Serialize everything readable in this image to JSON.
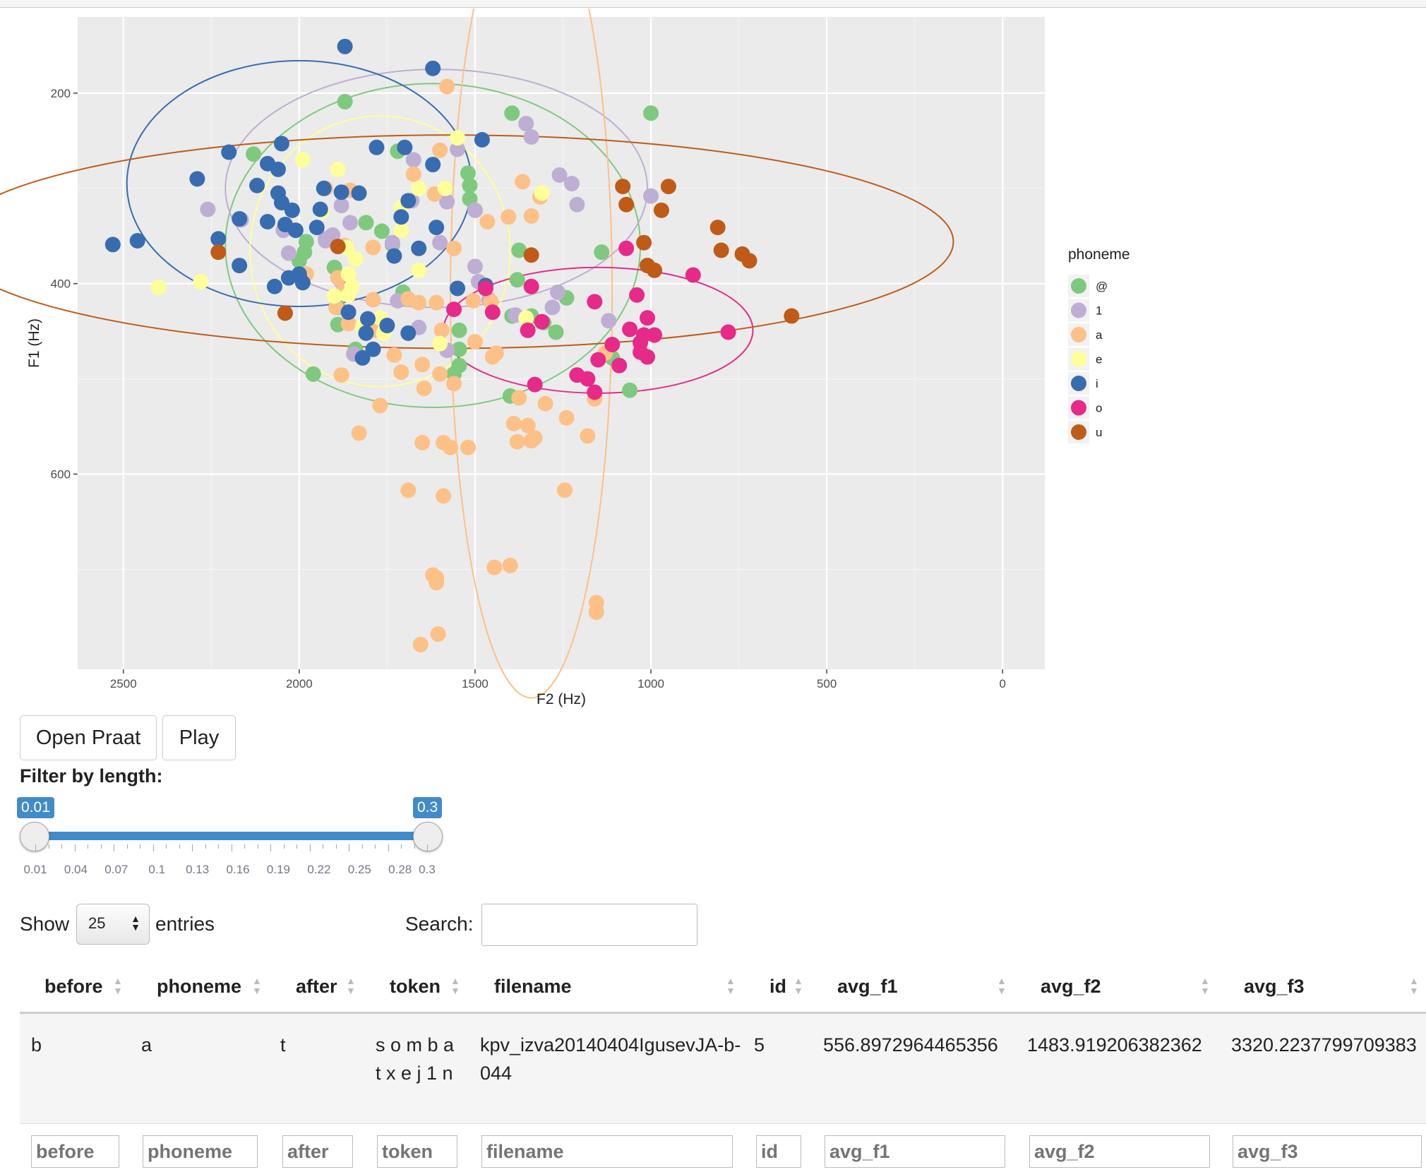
{
  "chart_data": {
    "type": "scatter",
    "xlabel": "F2 (Hz)",
    "ylabel": "F1 (Hz)",
    "xlim": [
      2630,
      -120
    ],
    "ylim": [
      805,
      120
    ],
    "x_reversed": true,
    "y_reversed": true,
    "xticks": [
      2500,
      2000,
      1500,
      1000,
      500,
      0
    ],
    "yticks": [
      200,
      400,
      600
    ],
    "grid": true,
    "legend_title": "phoneme",
    "legend_position": "right",
    "series": [
      {
        "name": "@",
        "color": "#7fc97f",
        "points": [
          [
            1870,
            209
          ],
          [
            1395,
            221
          ],
          [
            1000,
            221
          ],
          [
            2130,
            264
          ],
          [
            1720,
            261
          ],
          [
            1520,
            284
          ],
          [
            1515,
            297
          ],
          [
            1515,
            311
          ],
          [
            1810,
            336
          ],
          [
            1765,
            345
          ],
          [
            1735,
            359
          ],
          [
            1985,
            367
          ],
          [
            2000,
            376
          ],
          [
            1900,
            383
          ],
          [
            1375,
            365
          ],
          [
            1140,
            367
          ],
          [
            1705,
            409
          ],
          [
            1380,
            396
          ],
          [
            1890,
            425
          ],
          [
            1890,
            443
          ],
          [
            1395,
            434
          ],
          [
            1545,
            449
          ],
          [
            1340,
            434
          ],
          [
            1240,
            415
          ],
          [
            1270,
            451
          ],
          [
            1545,
            469
          ],
          [
            1840,
            469
          ],
          [
            1545,
            486
          ],
          [
            1110,
            478
          ],
          [
            1960,
            495
          ],
          [
            1560,
            495
          ],
          [
            1400,
            518
          ],
          [
            1060,
            512
          ],
          [
            1305,
            441
          ],
          [
            1980,
            356
          ]
        ]
      },
      {
        "name": "1",
        "color": "#beaed4",
        "points": [
          [
            1355,
            232
          ],
          [
            1340,
            246
          ],
          [
            1550,
            259
          ],
          [
            1675,
            270
          ],
          [
            1260,
            286
          ],
          [
            1225,
            295
          ],
          [
            2260,
            322
          ],
          [
            2165,
            333
          ],
          [
            2045,
            344
          ],
          [
            1905,
            349
          ],
          [
            1925,
            355
          ],
          [
            1880,
            318
          ],
          [
            1500,
            323
          ],
          [
            1680,
            313
          ],
          [
            1580,
            314
          ],
          [
            1210,
            317
          ],
          [
            1000,
            308
          ],
          [
            1855,
            336
          ],
          [
            1735,
            357
          ],
          [
            1925,
            353
          ],
          [
            1600,
            357
          ],
          [
            1500,
            382
          ],
          [
            1490,
            398
          ],
          [
            1460,
            417
          ],
          [
            1265,
            409
          ],
          [
            1280,
            425
          ],
          [
            1385,
            433
          ],
          [
            1580,
            470
          ],
          [
            1845,
            474
          ],
          [
            2030,
            368
          ],
          [
            1880,
            398
          ],
          [
            1120,
            439
          ],
          [
            1660,
            446
          ],
          [
            1720,
            418
          ]
        ]
      },
      {
        "name": "a",
        "color": "#fdc086",
        "points": [
          [
            1580,
            193
          ],
          [
            1600,
            260
          ],
          [
            1675,
            285
          ],
          [
            1925,
            300
          ],
          [
            1855,
            302
          ],
          [
            1615,
            306
          ],
          [
            1365,
            293
          ],
          [
            1315,
            309
          ],
          [
            1340,
            329
          ],
          [
            1405,
            330
          ],
          [
            1465,
            335
          ],
          [
            1870,
            360
          ],
          [
            1790,
            362
          ],
          [
            1560,
            363
          ],
          [
            1890,
            394
          ],
          [
            1875,
            408
          ],
          [
            1895,
            425
          ],
          [
            1980,
            390
          ],
          [
            1790,
            417
          ],
          [
            1690,
            416
          ],
          [
            1660,
            420
          ],
          [
            1610,
            420
          ],
          [
            1505,
            418
          ],
          [
            1455,
            419
          ],
          [
            1860,
            442
          ],
          [
            1780,
            449
          ],
          [
            1595,
            449
          ],
          [
            1500,
            461
          ],
          [
            1440,
            473
          ],
          [
            1450,
            477
          ],
          [
            1650,
            485
          ],
          [
            1730,
            475
          ],
          [
            1600,
            495
          ],
          [
            1560,
            505
          ],
          [
            1645,
            510
          ],
          [
            1880,
            496
          ],
          [
            1710,
            493
          ],
          [
            1770,
            528
          ],
          [
            1375,
            520
          ],
          [
            1130,
            473
          ],
          [
            1300,
            526
          ],
          [
            1390,
            547
          ],
          [
            1160,
            521
          ],
          [
            1240,
            541
          ],
          [
            1350,
            549
          ],
          [
            1330,
            562
          ],
          [
            1380,
            566
          ],
          [
            1520,
            572
          ],
          [
            1830,
            557
          ],
          [
            1650,
            567
          ],
          [
            1590,
            567
          ],
          [
            1570,
            572
          ],
          [
            1340,
            565
          ],
          [
            1180,
            560
          ],
          [
            1245,
            617
          ],
          [
            1690,
            617
          ],
          [
            1590,
            623
          ],
          [
            1445,
            698
          ],
          [
            1400,
            696
          ],
          [
            1610,
            709
          ],
          [
            1620,
            706
          ],
          [
            1610,
            714
          ],
          [
            1155,
            735
          ],
          [
            1155,
            745
          ],
          [
            1605,
            768
          ],
          [
            1655,
            779
          ]
        ]
      },
      {
        "name": "e",
        "color": "#ffff99",
        "points": [
          [
            1550,
            247
          ],
          [
            1990,
            270
          ],
          [
            1890,
            280
          ],
          [
            1660,
            300
          ],
          [
            1585,
            300
          ],
          [
            1935,
            324
          ],
          [
            1710,
            320
          ],
          [
            1710,
            344
          ],
          [
            1865,
            362
          ],
          [
            1840,
            374
          ],
          [
            1660,
            386
          ],
          [
            1860,
            390
          ],
          [
            1850,
            403
          ],
          [
            2280,
            398
          ],
          [
            1860,
            412
          ],
          [
            1900,
            413
          ],
          [
            2400,
            404
          ],
          [
            1770,
            436
          ],
          [
            1820,
            445
          ],
          [
            1760,
            452
          ],
          [
            1600,
            463
          ],
          [
            1755,
            448
          ],
          [
            1355,
            436
          ],
          [
            1310,
            305
          ]
        ]
      },
      {
        "name": "i",
        "color": "#386cb0",
        "points": [
          [
            1870,
            151
          ],
          [
            1620,
            174
          ],
          [
            1480,
            249
          ],
          [
            1780,
            257
          ],
          [
            1700,
            257
          ],
          [
            1620,
            275
          ],
          [
            2050,
            253
          ],
          [
            2200,
            262
          ],
          [
            2090,
            274
          ],
          [
            2060,
            280
          ],
          [
            2290,
            290
          ],
          [
            2120,
            297
          ],
          [
            2060,
            305
          ],
          [
            1930,
            300
          ],
          [
            1880,
            304
          ],
          [
            1830,
            305
          ],
          [
            1690,
            313
          ],
          [
            2050,
            315
          ],
          [
            2020,
            323
          ],
          [
            1940,
            322
          ],
          [
            1710,
            330
          ],
          [
            2170,
            332
          ],
          [
            2090,
            335
          ],
          [
            2040,
            338
          ],
          [
            1950,
            341
          ],
          [
            1610,
            341
          ],
          [
            2010,
            344
          ],
          [
            2230,
            353
          ],
          [
            1660,
            363
          ],
          [
            1730,
            371
          ],
          [
            2460,
            355
          ],
          [
            2530,
            359
          ],
          [
            2170,
            381
          ],
          [
            2030,
            394
          ],
          [
            1990,
            399
          ],
          [
            2070,
            403
          ],
          [
            1550,
            405
          ],
          [
            1470,
            402
          ],
          [
            1805,
            437
          ],
          [
            1750,
            444
          ],
          [
            1810,
            452
          ],
          [
            1690,
            452
          ],
          [
            1790,
            469
          ],
          [
            1820,
            478
          ],
          [
            1860,
            430
          ],
          [
            2000,
            390
          ]
        ]
      },
      {
        "name": "o",
        "color": "#e7298a",
        "points": [
          [
            1070,
            363
          ],
          [
            880,
            391
          ],
          [
            1340,
            403
          ],
          [
            1470,
            405
          ],
          [
            1040,
            412
          ],
          [
            1160,
            419
          ],
          [
            1560,
            427
          ],
          [
            1450,
            430
          ],
          [
            1310,
            440
          ],
          [
            1010,
            436
          ],
          [
            1060,
            448
          ],
          [
            1350,
            449
          ],
          [
            1020,
            454
          ],
          [
            990,
            454
          ],
          [
            780,
            451
          ],
          [
            1030,
            462
          ],
          [
            1110,
            464
          ],
          [
            1030,
            472
          ],
          [
            1010,
            477
          ],
          [
            1150,
            480
          ],
          [
            1090,
            486
          ],
          [
            1210,
            496
          ],
          [
            1180,
            500
          ],
          [
            1330,
            506
          ],
          [
            1160,
            514
          ]
        ]
      },
      {
        "name": "u",
        "color": "#bf5b17",
        "points": [
          [
            1080,
            298
          ],
          [
            950,
            298
          ],
          [
            1070,
            317
          ],
          [
            970,
            323
          ],
          [
            1020,
            357
          ],
          [
            810,
            341
          ],
          [
            800,
            365
          ],
          [
            740,
            369
          ],
          [
            720,
            376
          ],
          [
            1340,
            370
          ],
          [
            1010,
            381
          ],
          [
            990,
            386
          ],
          [
            2230,
            367
          ],
          [
            1890,
            361
          ],
          [
            2040,
            431
          ],
          [
            600,
            434
          ]
        ]
      }
    ],
    "ellipses": [
      {
        "series": "@",
        "cx": 1620,
        "cy": 360,
        "rx": 590,
        "ry": 170
      },
      {
        "series": "1",
        "cx": 1610,
        "cy": 300,
        "rx": 600,
        "ry": 125
      },
      {
        "series": "a",
        "cx": 1340,
        "cy": 410,
        "rx": 230,
        "ry": 425
      },
      {
        "series": "e",
        "cx": 1770,
        "cy": 366,
        "rx": 370,
        "ry": 142
      },
      {
        "series": "i",
        "cx": 2000,
        "cy": 295,
        "rx": 490,
        "ry": 129
      },
      {
        "series": "o",
        "cx": 1150,
        "cy": 449,
        "rx": 440,
        "ry": 66
      },
      {
        "series": "u",
        "cx": 1570,
        "cy": 356,
        "rx": 1430,
        "ry": 112
      }
    ]
  },
  "buttons": {
    "open_praat": "Open Praat",
    "play": "Play"
  },
  "filter": {
    "label": "Filter by length:",
    "min_value": "0.01",
    "max_value": "0.3",
    "range_min": 0.01,
    "range_max": 0.3,
    "ticks": [
      "0.01",
      "0.04",
      "0.07",
      "0.1",
      "0.13",
      "0.16",
      "0.19",
      "0.22",
      "0.25",
      "0.28",
      "0.3"
    ]
  },
  "table_controls": {
    "show_label": "Show",
    "entries_value": "25",
    "entries_label": "entries",
    "search_label": "Search:",
    "search_value": ""
  },
  "table": {
    "columns": [
      "before",
      "phoneme",
      "after",
      "token",
      "filename",
      "id",
      "avg_f1",
      "avg_f2",
      "avg_f3"
    ],
    "rows": [
      [
        "b",
        "a",
        "t",
        "s o m b a t x e j 1 n",
        "kpv_izva20140404IgusevJA-b-044",
        "5",
        "556.8972964465356",
        "1483.919206382362",
        "3320.2237799709383"
      ]
    ],
    "filter_placeholders": [
      "before",
      "phoneme",
      "after",
      "token",
      "filename",
      "id",
      "avg_f1",
      "avg_f2",
      "avg_f3"
    ]
  },
  "icons": {
    "sort": "sort-arrows-icon",
    "select_arrows": "select-arrows-icon"
  }
}
